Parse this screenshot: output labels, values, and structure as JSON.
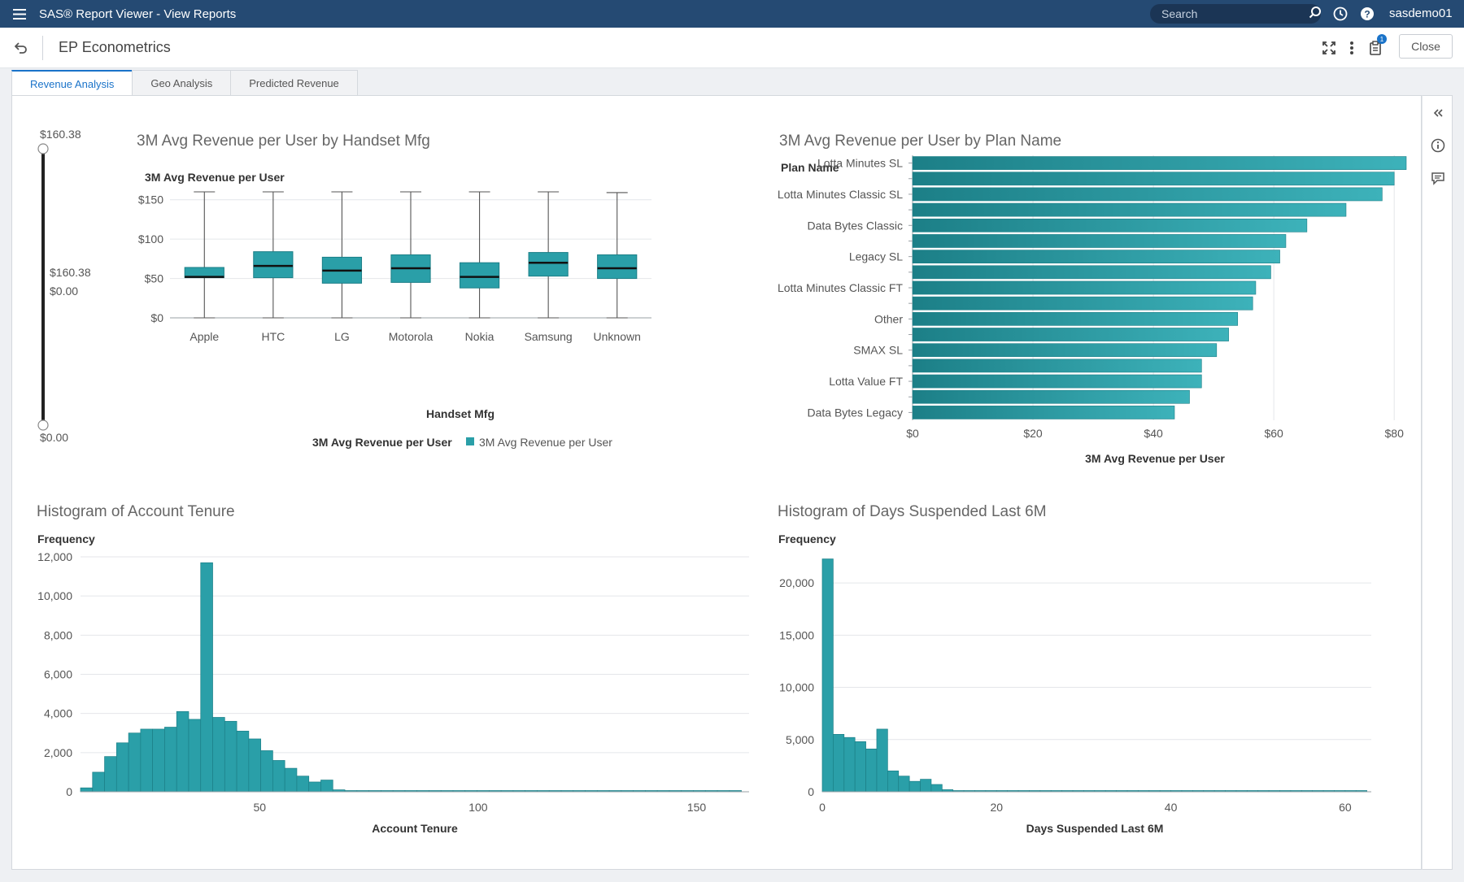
{
  "appbar": {
    "title": "SAS® Report Viewer - View Reports",
    "search_placeholder": "Search",
    "user": "sasdemo01",
    "icons": [
      "menu-icon",
      "search-icon",
      "history-icon",
      "help-icon"
    ]
  },
  "report": {
    "title": "EP Econometrics",
    "close_label": "Close",
    "notification_count": "1"
  },
  "tabs": [
    {
      "label": "Revenue Analysis",
      "active": true
    },
    {
      "label": "Geo Analysis",
      "active": false
    },
    {
      "label": "Predicted Revenue",
      "active": false
    }
  ],
  "colors": {
    "accent": "#1a73c9",
    "series": "#2a9fa8",
    "series_dark": "#1c7f87",
    "appbar": "#254a73"
  },
  "slider": {
    "max_label": "$160.38",
    "min_label": "$0.00",
    "current_high": "$160.38",
    "current_low": "$0.00"
  },
  "chart_data": [
    {
      "type": "box",
      "title": "3M Avg Revenue per User by Handset Mfg",
      "xlabel": "Handset Mfg",
      "ylabel": "3M Avg Revenue per User",
      "ylim": [
        0,
        160
      ],
      "yticks": [
        0,
        50,
        100,
        150
      ],
      "ytick_labels": [
        "$0",
        "$50",
        "$100",
        "$150"
      ],
      "legend_title": "3M Avg Revenue per User",
      "legend_entry": "3M Avg Revenue per User",
      "categories": [
        "Apple",
        "HTC",
        "LG",
        "Motorola",
        "Nokia",
        "Samsung",
        "Unknown"
      ],
      "boxes": [
        {
          "min": 0,
          "q1": 51,
          "median": 52,
          "q3": 64,
          "max": 160
        },
        {
          "min": 0,
          "q1": 51,
          "median": 66,
          "q3": 84,
          "max": 160
        },
        {
          "min": 0,
          "q1": 44,
          "median": 60,
          "q3": 77,
          "max": 160
        },
        {
          "min": 0,
          "q1": 45,
          "median": 63,
          "q3": 80,
          "max": 160
        },
        {
          "min": 0,
          "q1": 38,
          "median": 52,
          "q3": 70,
          "max": 160
        },
        {
          "min": 0,
          "q1": 53,
          "median": 70,
          "q3": 83,
          "max": 160
        },
        {
          "min": 0,
          "q1": 50,
          "median": 63,
          "q3": 80,
          "max": 159
        }
      ]
    },
    {
      "type": "bar",
      "orientation": "horizontal",
      "title": "3M Avg Revenue per User by Plan Name",
      "ylabel": "Plan Name",
      "xlabel": "3M Avg Revenue per User",
      "xlim": [
        0,
        82
      ],
      "xticks": [
        0,
        20,
        40,
        60,
        80
      ],
      "xtick_labels": [
        "$0",
        "$20",
        "$40",
        "$60",
        "$80"
      ],
      "labeled_categories": [
        "Lotta Minutes SL",
        "Lotta Minutes Classic SL",
        "Data Bytes Classic",
        "Legacy SL",
        "Lotta Minutes Classic FT",
        "Other",
        "SMAX SL",
        "Lotta Value FT",
        "Data Bytes Legacy"
      ],
      "values": [
        82,
        80,
        78,
        72,
        65.5,
        62,
        61,
        59.5,
        57,
        56.5,
        54,
        52.5,
        50.5,
        48,
        48,
        46,
        43.5
      ]
    },
    {
      "type": "histogram",
      "title": "Histogram of Account Tenure",
      "xlabel": "Account Tenure",
      "ylabel": "Frequency",
      "ylim": [
        0,
        12000
      ],
      "yticks": [
        0,
        2000,
        4000,
        6000,
        8000,
        10000,
        12000
      ],
      "ytick_labels": [
        "0",
        "2,000",
        "4,000",
        "6,000",
        "8,000",
        "10,000",
        "12,000"
      ],
      "xlim": [
        9,
        162
      ],
      "xticks": [
        50,
        100,
        150
      ],
      "bin_width": 2.75,
      "bin_start": 9,
      "values": [
        200,
        1000,
        1800,
        2500,
        3000,
        3200,
        3200,
        3300,
        4100,
        3700,
        11700,
        3800,
        3600,
        3100,
        2700,
        2100,
        1600,
        1200,
        800,
        500,
        600,
        100,
        60,
        40,
        30,
        30,
        30,
        20,
        20,
        20,
        20,
        20,
        20,
        20,
        20,
        20,
        20,
        20,
        20,
        20,
        20,
        20,
        20,
        20,
        20,
        20,
        20,
        20,
        20,
        20,
        20,
        20,
        20,
        20,
        20
      ]
    },
    {
      "type": "histogram",
      "title": "Histogram of Days Suspended Last 6M",
      "xlabel": "Days Suspended Last 6M",
      "ylabel": "Frequency",
      "ylim": [
        0,
        22500
      ],
      "yticks": [
        0,
        5000,
        10000,
        15000,
        20000
      ],
      "ytick_labels": [
        "0",
        "5,000",
        "10,000",
        "15,000",
        "20,000"
      ],
      "xlim": [
        0,
        63
      ],
      "xticks": [
        0,
        20,
        40,
        60
      ],
      "bin_width": 1.25,
      "bin_start": 0,
      "values": [
        22300,
        5500,
        5200,
        4800,
        4100,
        6000,
        2000,
        1500,
        1000,
        1200,
        700,
        200,
        100,
        60,
        40,
        30,
        20,
        20,
        20,
        20,
        20,
        20,
        20,
        20,
        20,
        20,
        20,
        20,
        20,
        20,
        20,
        20,
        20,
        20,
        20,
        20,
        20,
        20,
        20,
        20,
        20,
        20,
        20,
        20,
        20,
        20,
        20,
        20,
        20,
        20
      ]
    }
  ]
}
